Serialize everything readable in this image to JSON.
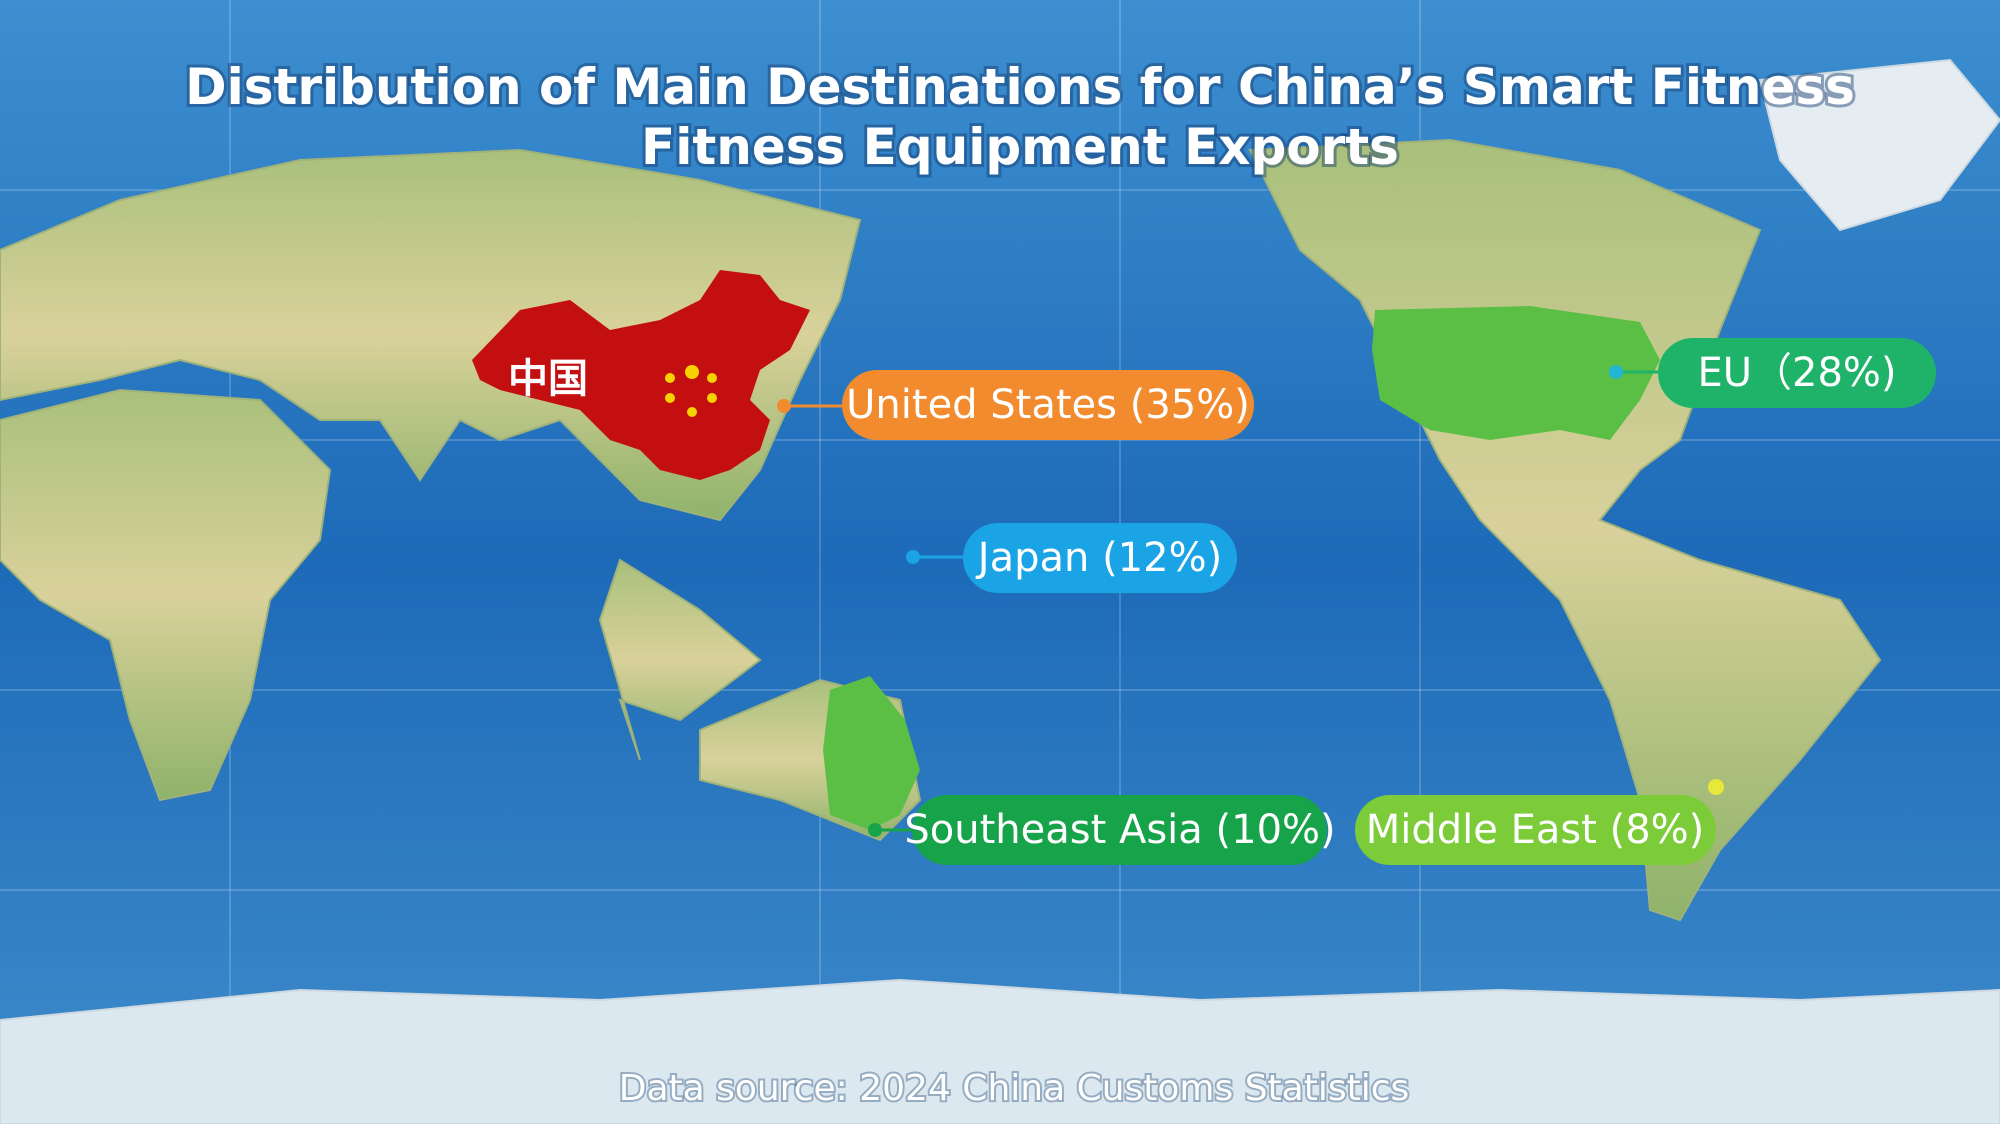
{
  "title": {
    "lines": [
      "Distribution of Main Destinations for China’s Smart Fitness",
      "Fitness Equipment Exports"
    ]
  },
  "map": {
    "china_label": "中国",
    "labels": [
      "United States (35%)",
      "EU（28%)",
      "Japan (12%)",
      "Southeast Asia (10%)",
      "Middle East (8%)"
    ]
  },
  "footer": {
    "source": "Data source: 2024 China Customs Statistics"
  }
}
